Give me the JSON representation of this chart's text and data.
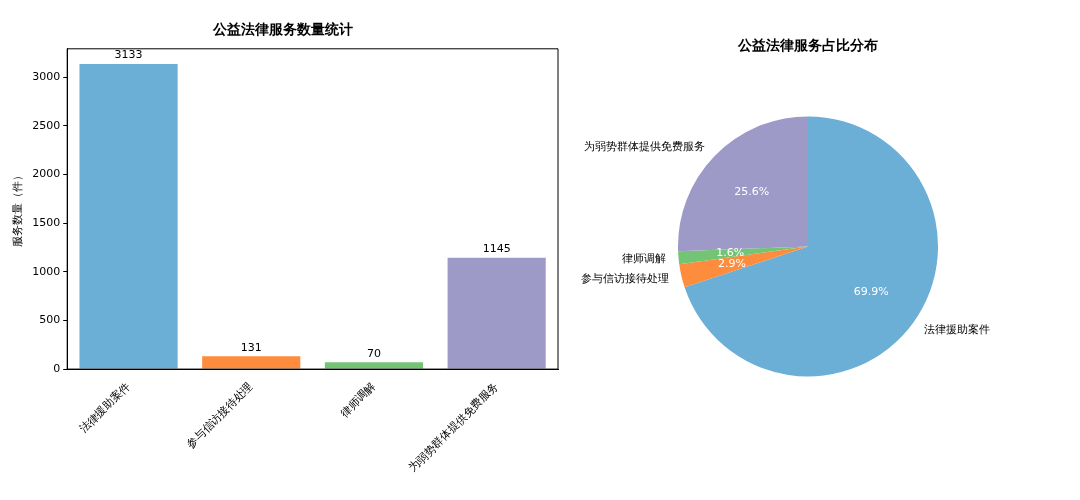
{
  "chart_data": [
    {
      "type": "bar",
      "title": "公益法律服务数量统计",
      "ylabel": "服务数量（件）",
      "categories": [
        "法律援助案件",
        "参与信访接待处理",
        "律师调解",
        "为弱势群体提供免费服务"
      ],
      "values": [
        3133,
        131,
        70,
        1145
      ],
      "colors": [
        "#6baed6",
        "#fd8d3c",
        "#74c476",
        "#9e9ac8"
      ],
      "ylim": [
        0,
        3290
      ],
      "yticks": [
        0,
        500,
        1000,
        1500,
        2000,
        2500,
        3000
      ],
      "grid": false,
      "legend": false,
      "data_labels": true
    },
    {
      "type": "pie",
      "title": "公益法律服务占比分布",
      "categories": [
        "法律援助案件",
        "参与信访接待处理",
        "律师调解",
        "为弱势群体提供免费服务"
      ],
      "values": [
        69.9,
        2.9,
        1.6,
        25.6
      ],
      "colors": [
        "#6baed6",
        "#fd8d3c",
        "#74c476",
        "#9e9ac8"
      ],
      "value_labels": [
        "69.9%",
        "2.9%",
        "1.6%",
        "25.6%"
      ],
      "legend": false
    }
  ]
}
